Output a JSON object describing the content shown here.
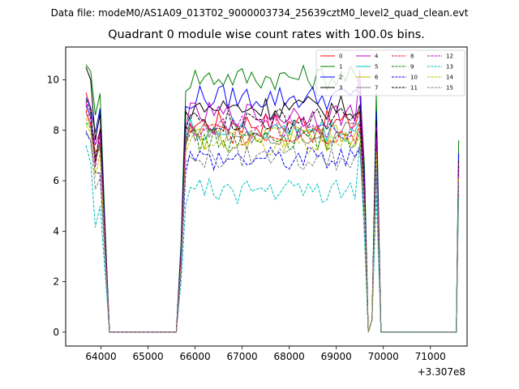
{
  "figure": {
    "suptitle": "Data file: modeM0/AS1A09_013T02_9000003734_25639cztM0_level2_quad_clean.evt",
    "title": "Quadrant 0 module wise count rates with 100.0s bins.",
    "x_offset_label": "+3.307e8"
  },
  "chart_data": {
    "type": "line",
    "title": "Quadrant 0 module wise count rates with 100.0s bins.",
    "xlabel": "",
    "ylabel": "",
    "x_offset": 330700000,
    "xlim": [
      63250,
      71780
    ],
    "ylim": [
      -0.55,
      11.3
    ],
    "xticks": [
      64000,
      65000,
      66000,
      67000,
      68000,
      69000,
      70000,
      71000
    ],
    "yticks": [
      0,
      2,
      4,
      6,
      8,
      10
    ],
    "grid": false,
    "legend_position": "top-right",
    "legend_columns": 4,
    "series": [
      {
        "name": "0",
        "color": "#ff0000",
        "dash": "solid",
        "level": 8.3,
        "first": 9.5,
        "last": 6.6,
        "seg2_end": 8.2
      },
      {
        "name": "1",
        "color": "#008000",
        "dash": "solid",
        "level": 10.1,
        "first": 10.6,
        "last": 7.6,
        "seg2_end": 9.2
      },
      {
        "name": "2",
        "color": "#0000ff",
        "dash": "solid",
        "level": 9.3,
        "first": 9.3,
        "last": 7.1,
        "seg2_end": 8.9
      },
      {
        "name": "3",
        "color": "#000000",
        "dash": "solid",
        "level": 8.9,
        "first": 10.5,
        "last": 6.8,
        "seg2_end": 8.4
      },
      {
        "name": "4",
        "color": "#bf00bf",
        "dash": "solid",
        "level": 8.6,
        "first": 9.1,
        "last": 6.7,
        "seg2_end": 9.8
      },
      {
        "name": "5",
        "color": "#00bfbf",
        "dash": "solid",
        "level": 8.0,
        "first": 8.9,
        "last": 6.5,
        "seg2_end": 7.8
      },
      {
        "name": "6",
        "color": "#bfbf00",
        "dash": "solid",
        "level": 7.7,
        "first": 8.5,
        "last": 6.3,
        "seg2_end": 7.5
      },
      {
        "name": "7",
        "color": "#808080",
        "dash": "solid",
        "level": 7.9,
        "first": 8.7,
        "last": 6.4,
        "seg2_end": 7.6
      },
      {
        "name": "8",
        "color": "#ff0000",
        "dash": "dashed",
        "level": 7.9,
        "first": 8.8,
        "last": 6.4,
        "seg2_end": 7.7
      },
      {
        "name": "9",
        "color": "#008000",
        "dash": "dashed",
        "level": 7.6,
        "first": 8.3,
        "last": 6.2,
        "seg2_end": 7.4
      },
      {
        "name": "10",
        "color": "#0000ff",
        "dash": "dashed",
        "level": 6.9,
        "first": 7.9,
        "last": 5.9,
        "seg2_end": 6.7
      },
      {
        "name": "11",
        "color": "#000000",
        "dash": "dashed",
        "level": 8.4,
        "first": 9.2,
        "last": 6.6,
        "seg2_end": 8.1
      },
      {
        "name": "12",
        "color": "#bf00bf",
        "dash": "dashed",
        "level": 8.1,
        "first": 9.0,
        "last": 6.5,
        "seg2_end": 7.9
      },
      {
        "name": "13",
        "color": "#00bfbf",
        "dash": "dashed",
        "level": 5.6,
        "first": 7.4,
        "last": 5.4,
        "seg2_end": 6.9
      },
      {
        "name": "14",
        "color": "#bfbf00",
        "dash": "dashed",
        "level": 7.5,
        "first": 8.2,
        "last": 6.1,
        "seg2_end": 7.2
      },
      {
        "name": "15",
        "color": "#808080",
        "dash": "dashed",
        "level": 6.9,
        "first": 8.0,
        "last": 5.9,
        "seg2_end": 6.8
      }
    ],
    "time_structure": {
      "segment1_x": [
        63680,
        64000
      ],
      "drop_to_zero_x": 64180,
      "zero_gap_x": [
        64180,
        65600
      ],
      "segment2_x": [
        65800,
        69500
      ],
      "dip_x": 69680,
      "spike_x": 69850,
      "zero_gap2_x": [
        69950,
        71550
      ],
      "final_x": 71600
    }
  }
}
